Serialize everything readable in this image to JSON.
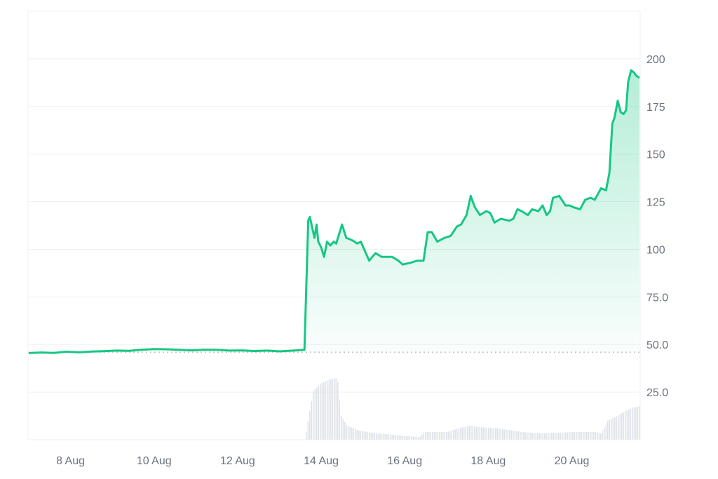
{
  "chart_data": {
    "type": "area",
    "x_ticks": [
      "8 Aug",
      "10 Aug",
      "12 Aug",
      "14 Aug",
      "16 Aug",
      "18 Aug",
      "20 Aug"
    ],
    "y_ticks": [
      "25.0",
      "50.0",
      "75.0",
      "100",
      "125",
      "150",
      "175",
      "200"
    ],
    "y_range": [
      0,
      225
    ],
    "x_range_days": [
      "7 Aug",
      "21.6 Aug"
    ],
    "grid": "horizontal",
    "colors": {
      "line": "#16c784",
      "fill_top": "#16c784",
      "volume": "#dfe3e8",
      "grid": "#eef0f3",
      "axis_text": "#6b7280",
      "baseline": "#9ca3af"
    },
    "reference_line": 46,
    "series": [
      {
        "type": "line",
        "x": [
          7.0,
          7.3,
          7.6,
          7.9,
          8.2,
          8.5,
          8.8,
          9.1,
          9.4,
          9.7,
          10.0,
          10.3,
          10.6,
          10.9,
          11.2,
          11.5,
          11.8,
          12.1,
          12.4,
          12.7,
          13.0,
          13.4,
          13.6,
          13.69,
          13.73,
          13.78,
          13.84,
          13.89,
          13.93,
          14.0,
          14.07,
          14.14,
          14.22,
          14.3,
          14.36,
          14.5,
          14.6,
          14.72,
          14.8,
          14.86,
          14.95,
          15.15,
          15.3,
          15.45,
          15.7,
          15.85,
          15.95,
          16.15,
          16.3,
          16.45,
          16.55,
          16.65,
          16.7,
          16.78,
          16.95,
          17.1,
          17.25,
          17.35,
          17.48,
          17.58,
          17.68,
          17.8,
          17.95,
          18.05,
          18.15,
          18.3,
          18.5,
          18.6,
          18.7,
          18.8,
          18.95,
          19.05,
          19.2,
          19.3,
          19.4,
          19.48,
          19.55,
          19.7,
          19.85,
          19.95,
          20.05,
          20.2,
          20.32,
          20.45,
          20.55,
          20.7,
          20.82,
          20.9,
          20.97,
          21.02,
          21.1,
          21.17,
          21.24,
          21.3,
          21.35,
          21.42,
          21.48,
          21.55,
          21.62
        ],
        "y": [
          45.5,
          45.8,
          45.6,
          46.2,
          45.9,
          46.3,
          46.5,
          46.8,
          46.7,
          47.2,
          47.6,
          47.5,
          47.2,
          46.9,
          47.3,
          47.2,
          46.8,
          46.9,
          46.6,
          46.8,
          46.4,
          46.9,
          47.2,
          115,
          117,
          112,
          106,
          113,
          104,
          101,
          96,
          104,
          102,
          104,
          103,
          113,
          106,
          105,
          104,
          103,
          104,
          94,
          98,
          96,
          96,
          94,
          92,
          93,
          94,
          94,
          109,
          109,
          107,
          104,
          106,
          107,
          112,
          113,
          118,
          128,
          122,
          118,
          120,
          119,
          114,
          116,
          115,
          116,
          121,
          120,
          118,
          121,
          120,
          123,
          118,
          120,
          127,
          128,
          123,
          123,
          122,
          121,
          126,
          127,
          126,
          132,
          131,
          140,
          166,
          169,
          178,
          172,
          171,
          173,
          188,
          194,
          193,
          191,
          190
        ]
      },
      {
        "type": "volume",
        "x": [
          7.0,
          13.6,
          13.7,
          13.8,
          14.0,
          14.2,
          14.35,
          14.4,
          14.45,
          14.6,
          14.9,
          15.3,
          16.0,
          16.35,
          16.45,
          17.0,
          17.2,
          17.55,
          17.7,
          18.2,
          18.8,
          19.3,
          20.0,
          20.6,
          20.68,
          20.78,
          20.85,
          21.05,
          21.25,
          21.45,
          21.62
        ],
        "v": [
          0,
          0,
          20,
          38,
          44,
          47,
          48,
          44,
          20,
          11,
          7,
          5,
          3,
          2,
          6,
          6,
          8,
          11,
          10,
          9,
          6,
          5,
          6,
          6,
          5,
          10,
          15,
          18,
          22,
          25,
          26
        ]
      }
    ]
  }
}
